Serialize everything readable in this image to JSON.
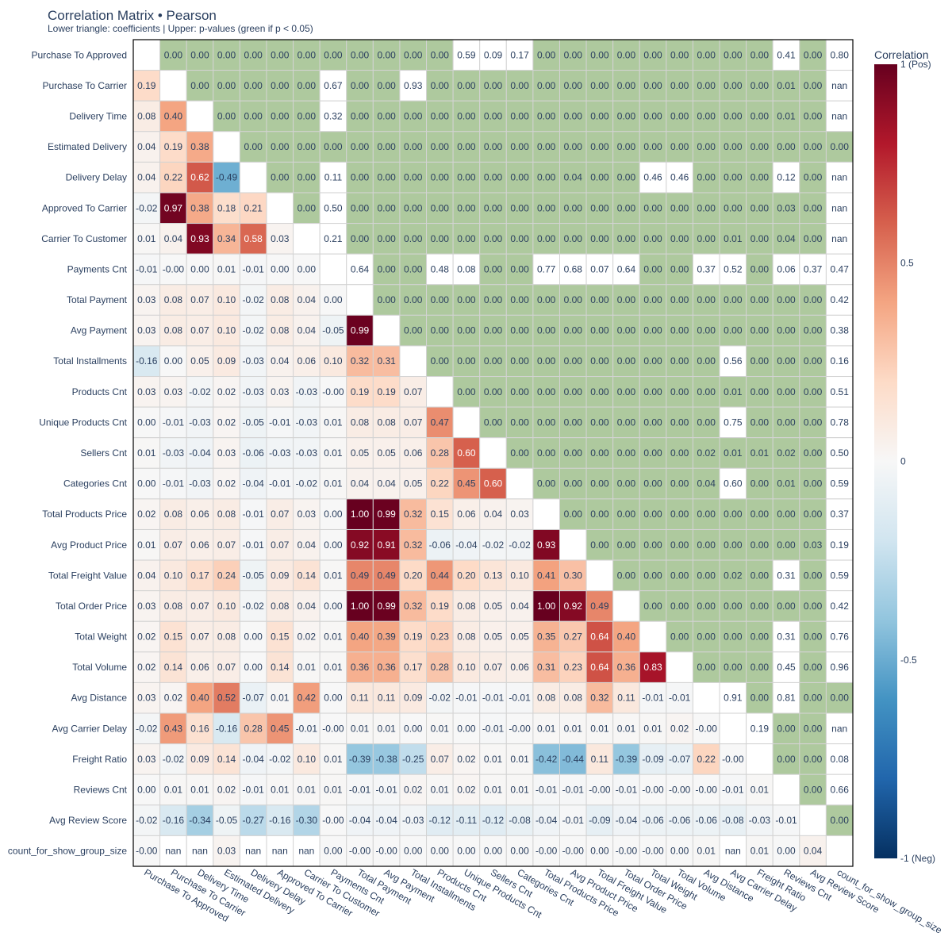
{
  "chart_data": {
    "type": "heatmap",
    "title": "Correlation Matrix • Pearson",
    "subtitle": "Lower triangle: coefficients | Upper: p-values (green if p < 0.05)",
    "labels": [
      "Purchase To Approved",
      "Purchase To Carrier",
      "Delivery Time",
      "Estimated Delivery",
      "Delivery Delay",
      "Approved To Carrier",
      "Carrier To Customer",
      "Payments Cnt",
      "Total Payment",
      "Avg Payment",
      "Total Installments",
      "Products Cnt",
      "Unique Products Cnt",
      "Sellers Cnt",
      "Categories Cnt",
      "Total Products Price",
      "Avg Product Price",
      "Total Freight Value",
      "Total Order Price",
      "Total Weight",
      "Total Volume",
      "Avg Distance",
      "Avg Carrier Delay",
      "Freight Ratio",
      "Reviews Cnt",
      "Avg Review Score",
      "count_for_show_group_size"
    ],
    "matrix_rows": [
      ",0.00,0.00,0.00,0.00,0.00,0.00,0.00,0.00,0.00,0.00,0.00,0.59,0.09,0.17,0.00,0.00,0.00,0.00,0.00,0.00,0.00,0.00,0.00,0.41,0.00,0.80",
      "0.19,,0.00,0.00,0.00,0.00,0.00,0.67,0.00,0.00,0.93,0.00,0.00,0.00,0.00,0.00,0.00,0.00,0.00,0.00,0.00,0.00,0.00,0.00,0.01,0.00,nan",
      "0.08,0.40,,0.00,0.00,0.00,0.00,0.32,0.00,0.00,0.00,0.00,0.00,0.00,0.00,0.00,0.00,0.00,0.00,0.00,0.00,0.00,0.00,0.00,0.01,0.00,nan",
      "0.04,0.19,0.38,,0.00,0.00,0.00,0.00,0.00,0.00,0.00,0.00,0.00,0.00,0.00,0.00,0.00,0.00,0.00,0.00,0.00,0.00,0.00,0.00,0.00,0.00,0.00",
      "0.04,0.22,0.62,-0.49,,0.00,0.00,0.11,0.00,0.00,0.00,0.00,0.00,0.00,0.00,0.00,0.04,0.00,0.00,0.46,0.46,0.00,0.00,0.00,0.12,0.00,nan",
      "-0.02,0.97,0.38,0.18,0.21,,0.00,0.50,0.00,0.00,0.00,0.00,0.00,0.00,0.00,0.00,0.00,0.00,0.00,0.00,0.00,0.00,0.00,0.00,0.03,0.00,nan",
      "0.01,0.04,0.93,0.34,0.58,0.03,,0.21,0.00,0.00,0.00,0.00,0.00,0.00,0.00,0.00,0.00,0.00,0.00,0.00,0.00,0.00,0.01,0.00,0.04,0.00,nan",
      "-0.01,-0.00,0.00,0.01,-0.01,0.00,0.00,,0.64,0.00,0.00,0.48,0.08,0.00,0.00,0.77,0.68,0.07,0.64,0.00,0.00,0.37,0.52,0.00,0.06,0.37,0.47",
      "0.03,0.08,0.07,0.10,-0.02,0.08,0.04,0.00,,0.00,0.00,0.00,0.00,0.00,0.00,0.00,0.00,0.00,0.00,0.00,0.00,0.00,0.00,0.00,0.00,0.00,0.42",
      "0.03,0.08,0.07,0.10,-0.02,0.08,0.04,-0.05,0.99,,0.00,0.00,0.00,0.00,0.00,0.00,0.00,0.00,0.00,0.00,0.00,0.00,0.00,0.00,0.00,0.00,0.38",
      "-0.16,0.00,0.05,0.09,-0.03,0.04,0.06,0.10,0.32,0.31,,0.00,0.00,0.00,0.00,0.00,0.00,0.00,0.00,0.00,0.00,0.00,0.56,0.00,0.00,0.00,0.16",
      "0.03,0.03,-0.02,0.02,-0.03,0.03,-0.03,-0.00,0.19,0.19,0.07,,0.00,0.00,0.00,0.00,0.00,0.00,0.00,0.00,0.00,0.00,0.01,0.00,0.00,0.00,0.51",
      "0.00,-0.01,-0.03,0.02,-0.05,-0.01,-0.03,0.01,0.08,0.08,0.07,0.47,,0.00,0.00,0.00,0.00,0.00,0.00,0.00,0.00,0.00,0.75,0.00,0.00,0.00,0.78",
      "0.01,-0.03,-0.04,0.03,-0.06,-0.03,-0.03,0.01,0.05,0.05,0.06,0.28,0.60,,0.00,0.00,0.00,0.00,0.00,0.00,0.00,0.02,0.01,0.01,0.02,0.00,0.50",
      "0.00,-0.01,-0.03,0.02,-0.04,-0.01,-0.02,0.01,0.04,0.04,0.05,0.22,0.45,0.60,,0.00,0.00,0.00,0.00,0.00,0.00,0.04,0.60,0.00,0.01,0.00,0.59",
      "0.02,0.08,0.06,0.08,-0.01,0.07,0.03,0.00,1.00,0.99,0.32,0.15,0.06,0.04,0.03,,0.00,0.00,0.00,0.00,0.00,0.00,0.00,0.00,0.00,0.00,0.37",
      "0.01,0.07,0.06,0.07,-0.01,0.07,0.04,0.00,0.92,0.91,0.32,-0.06,-0.04,-0.02,-0.02,0.93,,0.00,0.00,0.00,0.00,0.00,0.00,0.00,0.00,0.03,0.19",
      "0.04,0.10,0.17,0.24,-0.05,0.09,0.14,0.01,0.49,0.49,0.20,0.44,0.20,0.13,0.10,0.41,0.30,,0.00,0.00,0.00,0.00,0.02,0.00,0.31,0.00,0.59",
      "0.03,0.08,0.07,0.10,-0.02,0.08,0.04,0.00,1.00,0.99,0.32,0.19,0.08,0.05,0.04,1.00,0.92,0.49,,0.00,0.00,0.00,0.00,0.00,0.00,0.00,0.42",
      "0.02,0.15,0.07,0.08,0.00,0.15,0.02,0.01,0.40,0.39,0.19,0.23,0.08,0.05,0.05,0.35,0.27,0.64,0.40,,0.00,0.00,0.00,0.00,0.31,0.00,0.76",
      "0.02,0.14,0.06,0.07,0.00,0.14,0.01,0.01,0.36,0.36,0.17,0.28,0.10,0.07,0.06,0.31,0.23,0.64,0.36,0.83,,0.00,0.00,0.00,0.45,0.00,0.96",
      "0.03,0.02,0.40,0.52,-0.07,0.01,0.42,0.00,0.11,0.11,0.09,-0.02,-0.01,-0.01,-0.01,0.08,0.08,0.32,0.11,-0.01,-0.01,,0.91,0.00,0.81,0.00,0.00",
      "-0.02,0.43,0.16,-0.16,0.28,0.45,-0.01,-0.00,0.01,0.01,0.00,0.01,0.00,-0.01,-0.00,0.01,0.01,0.01,0.01,0.01,0.02,-0.00,,0.19,0.00,0.00,nan",
      "0.03,-0.02,0.09,0.14,-0.04,-0.02,0.10,0.01,-0.39,-0.38,-0.25,0.07,0.02,0.01,0.01,-0.42,-0.44,0.11,-0.39,-0.09,-0.07,0.22,-0.00,,0.00,0.00,0.08",
      "0.00,0.01,0.01,0.02,-0.01,0.01,0.01,0.01,-0.01,-0.01,0.02,0.01,0.02,0.01,0.01,-0.01,-0.01,-0.00,-0.01,-0.00,-0.00,-0.00,-0.01,0.01,,0.00,0.66",
      "-0.02,-0.16,-0.34,-0.05,-0.27,-0.16,-0.30,-0.00,-0.04,-0.04,-0.03,-0.12,-0.11,-0.12,-0.08,-0.04,-0.01,-0.09,-0.04,-0.06,-0.06,-0.06,-0.08,-0.03,-0.01,,0.00",
      "-0.00,nan,nan,0.03,nan,nan,nan,0.00,-0.00,-0.00,0.00,0.00,0.00,0.00,0.00,-0.00,-0.00,0.00,-0.00,-0.00,0.00,0.01,nan,0.01,0.00,0.04,"
    ],
    "colorbar": {
      "title": "Correlation",
      "range": [
        -1,
        1
      ],
      "ticks": [
        "1 (Pos)",
        "0.5",
        "0",
        "-0.5",
        "-1 (Neg)"
      ]
    },
    "colors": {
      "significant": "#aec99e",
      "grid_line": "#d3d3d3",
      "frame": "#000000",
      "nan_cell": "#ffffff",
      "text": "#2a3f5f"
    }
  }
}
